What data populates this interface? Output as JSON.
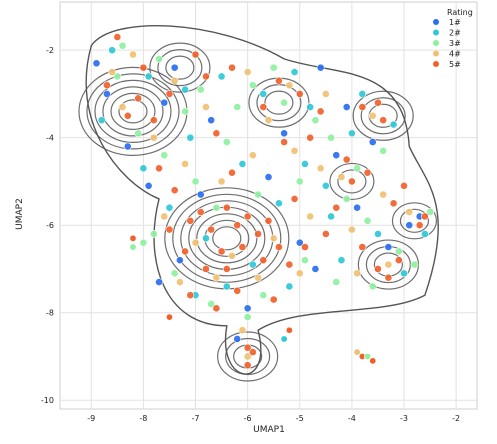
{
  "chart_data": {
    "type": "scatter",
    "xlabel": "UMAP1",
    "ylabel": "UMAP2",
    "xlim": [
      -9.6,
      -1.6
    ],
    "ylim": [
      -10.2,
      -0.9
    ],
    "xticks": [
      -9,
      -8,
      -7,
      -6,
      -5,
      -4,
      -3,
      -2
    ],
    "yticks": [
      -10,
      -8,
      -6,
      -4,
      -2
    ],
    "grid": true,
    "style": "whitegrid",
    "overlay": "kde density contours",
    "legend": {
      "title": "Rating",
      "placement": "top-right",
      "entries": [
        {
          "label": "1#",
          "color": "#2a6ef0"
        },
        {
          "label": "2#",
          "color": "#2ec8d8"
        },
        {
          "label": "3#",
          "color": "#8ef0a0"
        },
        {
          "label": "4#",
          "color": "#f0c070"
        },
        {
          "label": "5#",
          "color": "#f2602a"
        }
      ]
    },
    "series": [
      {
        "name": "1#",
        "color": "#2a6ef0",
        "points": [
          [
            -8.9,
            -2.3
          ],
          [
            -7.6,
            -3.2
          ],
          [
            -6.7,
            -3.6
          ],
          [
            -5.3,
            -3.9
          ],
          [
            -4.3,
            -4.4
          ],
          [
            -3.6,
            -4.1
          ],
          [
            -8.3,
            -4.2
          ],
          [
            -7.9,
            -5.1
          ],
          [
            -7.3,
            -6.8
          ],
          [
            -6.0,
            -7.9
          ],
          [
            -5.0,
            -6.4
          ],
          [
            -3.9,
            -5.6
          ],
          [
            -2.9,
            -6.0
          ],
          [
            -4.6,
            -2.4
          ],
          [
            -8.7,
            -3.0
          ],
          [
            -6.2,
            -8.6
          ],
          [
            -7.7,
            -7.3
          ],
          [
            -5.6,
            -4.9
          ],
          [
            -4.7,
            -7.0
          ],
          [
            -3.3,
            -6.5
          ],
          [
            -2.7,
            -5.8
          ],
          [
            -7.4,
            -2.4
          ],
          [
            -6.9,
            -5.3
          ],
          [
            -4.1,
            -3.3
          ]
        ]
      },
      {
        "name": "2#",
        "color": "#2ec8d8",
        "points": [
          [
            -8.6,
            -2.0
          ],
          [
            -7.9,
            -2.6
          ],
          [
            -7.1,
            -4.0
          ],
          [
            -6.5,
            -2.6
          ],
          [
            -5.7,
            -3.0
          ],
          [
            -4.9,
            -4.6
          ],
          [
            -4.0,
            -3.9
          ],
          [
            -3.2,
            -3.7
          ],
          [
            -8.0,
            -4.7
          ],
          [
            -7.5,
            -5.6
          ],
          [
            -6.8,
            -6.3
          ],
          [
            -5.4,
            -5.5
          ],
          [
            -4.4,
            -5.8
          ],
          [
            -3.5,
            -6.2
          ],
          [
            -3.0,
            -7.1
          ],
          [
            -6.4,
            -7.4
          ],
          [
            -5.2,
            -7.4
          ],
          [
            -7.0,
            -7.6
          ],
          [
            -4.8,
            -3.3
          ],
          [
            -3.8,
            -3.0
          ],
          [
            -8.8,
            -3.6
          ],
          [
            -6.1,
            -4.6
          ],
          [
            -5.9,
            -6.9
          ],
          [
            -4.2,
            -6.8
          ],
          [
            -2.6,
            -6.2
          ],
          [
            -7.2,
            -2.9
          ],
          [
            -5.1,
            -2.5
          ],
          [
            -4.5,
            -5.1
          ]
        ]
      },
      {
        "name": "3#",
        "color": "#8ef0a0",
        "points": [
          [
            -8.4,
            -1.9
          ],
          [
            -7.7,
            -2.2
          ],
          [
            -6.9,
            -2.9
          ],
          [
            -6.2,
            -3.3
          ],
          [
            -5.5,
            -2.4
          ],
          [
            -4.7,
            -3.6
          ],
          [
            -3.9,
            -4.7
          ],
          [
            -3.4,
            -4.3
          ],
          [
            -8.1,
            -3.9
          ],
          [
            -7.6,
            -4.4
          ],
          [
            -7.0,
            -5.0
          ],
          [
            -6.6,
            -5.6
          ],
          [
            -5.8,
            -5.3
          ],
          [
            -5.0,
            -5.0
          ],
          [
            -4.1,
            -5.4
          ],
          [
            -3.7,
            -5.9
          ],
          [
            -3.1,
            -6.6
          ],
          [
            -2.8,
            -6.9
          ],
          [
            -7.8,
            -6.2
          ],
          [
            -7.4,
            -7.1
          ],
          [
            -6.7,
            -7.8
          ],
          [
            -5.7,
            -7.6
          ],
          [
            -4.9,
            -6.8
          ],
          [
            -4.3,
            -7.3
          ],
          [
            -3.6,
            -7.4
          ],
          [
            -6.0,
            -8.1
          ],
          [
            -8.0,
            -6.4
          ],
          [
            -4.4,
            -4.0
          ],
          [
            -5.3,
            -3.2
          ],
          [
            -6.4,
            -4.1
          ],
          [
            -2.5,
            -5.7
          ],
          [
            -8.5,
            -2.6
          ],
          [
            -7.2,
            -3.4
          ],
          [
            -5.9,
            -2.8
          ]
        ]
      },
      {
        "name": "4#",
        "color": "#f0c070",
        "points": [
          [
            -8.2,
            -2.1
          ],
          [
            -7.4,
            -2.7
          ],
          [
            -6.8,
            -3.3
          ],
          [
            -6.0,
            -2.5
          ],
          [
            -5.2,
            -2.8
          ],
          [
            -4.5,
            -3.0
          ],
          [
            -3.6,
            -3.5
          ],
          [
            -8.4,
            -3.3
          ],
          [
            -7.8,
            -4.0
          ],
          [
            -7.2,
            -4.6
          ],
          [
            -6.5,
            -5.0
          ],
          [
            -5.9,
            -4.4
          ],
          [
            -5.1,
            -4.3
          ],
          [
            -4.2,
            -4.9
          ],
          [
            -3.4,
            -5.3
          ],
          [
            -2.9,
            -5.7
          ],
          [
            -7.6,
            -5.8
          ],
          [
            -7.0,
            -6.4
          ],
          [
            -6.3,
            -6.7
          ],
          [
            -5.5,
            -6.3
          ],
          [
            -4.8,
            -5.8
          ],
          [
            -4.0,
            -6.1
          ],
          [
            -3.3,
            -6.9
          ],
          [
            -7.3,
            -7.3
          ],
          [
            -6.6,
            -7.2
          ],
          [
            -5.8,
            -7.2
          ],
          [
            -5.0,
            -7.1
          ],
          [
            -6.1,
            -8.4
          ],
          [
            -6.0,
            -9.0
          ],
          [
            -3.9,
            -7.1
          ],
          [
            -4.6,
            -4.7
          ],
          [
            -8.6,
            -2.5
          ],
          [
            -5.6,
            -3.6
          ]
        ]
      },
      {
        "name": "5#",
        "color": "#f2602a",
        "points": [
          [
            -8.5,
            -1.7
          ],
          [
            -8.0,
            -2.4
          ],
          [
            -8.3,
            -3.5
          ],
          [
            -8.1,
            -3.1
          ],
          [
            -7.8,
            -3.6
          ],
          [
            -7.5,
            -3.0
          ],
          [
            -7.0,
            -2.1
          ],
          [
            -6.8,
            -2.6
          ],
          [
            -6.3,
            -2.4
          ],
          [
            -6.6,
            -3.9
          ],
          [
            -5.4,
            -2.7
          ],
          [
            -5.0,
            -3.0
          ],
          [
            -4.6,
            -3.4
          ],
          [
            -5.7,
            -3.3
          ],
          [
            -4.8,
            -4.0
          ],
          [
            -5.3,
            -4.1
          ],
          [
            -3.8,
            -3.3
          ],
          [
            -3.5,
            -3.2
          ],
          [
            -3.4,
            -3.6
          ],
          [
            -4.1,
            -4.5
          ],
          [
            -4.0,
            -5.0
          ],
          [
            -3.7,
            -4.8
          ],
          [
            -3.2,
            -5.5
          ],
          [
            -3.0,
            -5.1
          ],
          [
            -7.4,
            -5.2
          ],
          [
            -7.1,
            -5.9
          ],
          [
            -6.9,
            -5.7
          ],
          [
            -6.7,
            -6.1
          ],
          [
            -6.4,
            -5.6
          ],
          [
            -6.2,
            -6.0
          ],
          [
            -6.0,
            -5.8
          ],
          [
            -5.8,
            -6.2
          ],
          [
            -5.6,
            -5.9
          ],
          [
            -5.4,
            -6.5
          ],
          [
            -6.5,
            -6.6
          ],
          [
            -7.2,
            -6.6
          ],
          [
            -7.5,
            -6.1
          ],
          [
            -6.8,
            -7.0
          ],
          [
            -6.4,
            -7.0
          ],
          [
            -6.1,
            -6.5
          ],
          [
            -5.7,
            -6.8
          ],
          [
            -5.2,
            -6.9
          ],
          [
            -4.9,
            -6.5
          ],
          [
            -6.2,
            -7.5
          ],
          [
            -5.5,
            -7.7
          ],
          [
            -7.1,
            -7.6
          ],
          [
            -6.6,
            -7.9
          ],
          [
            -4.5,
            -6.2
          ],
          [
            -3.8,
            -6.5
          ],
          [
            -3.5,
            -7.0
          ],
          [
            -3.3,
            -7.2
          ],
          [
            -3.1,
            -6.8
          ],
          [
            -2.7,
            -6.0
          ],
          [
            -2.6,
            -5.8
          ],
          [
            -6.0,
            -8.8
          ],
          [
            -6.0,
            -9.2
          ],
          [
            -5.9,
            -8.9
          ],
          [
            -8.7,
            -2.8
          ],
          [
            -5.1,
            -5.4
          ],
          [
            -4.3,
            -5.6
          ],
          [
            -6.3,
            -4.8
          ],
          [
            -7.7,
            -4.7
          ]
        ]
      }
    ],
    "outliers": [
      {
        "series": "4#",
        "x": -3.9,
        "y": -8.9
      },
      {
        "series": "5#",
        "x": -3.8,
        "y": -9.0
      },
      {
        "series": "5#",
        "x": -3.6,
        "y": -9.1
      },
      {
        "series": "3#",
        "x": -3.7,
        "y": -9.0
      },
      {
        "series": "5#",
        "x": -8.2,
        "y": -6.3
      },
      {
        "series": "3#",
        "x": -8.2,
        "y": -6.5
      },
      {
        "series": "5#",
        "x": -7.5,
        "y": -8.1
      },
      {
        "series": "5#",
        "x": -5.2,
        "y": -8.4
      },
      {
        "series": "2#",
        "x": -5.3,
        "y": -8.6
      }
    ],
    "density_peaks": [
      {
        "x": -8.2,
        "y": -3.4,
        "level": 6
      },
      {
        "x": -7.3,
        "y": -2.4,
        "level": 3
      },
      {
        "x": -6.4,
        "y": -6.3,
        "level": 7
      },
      {
        "x": -5.4,
        "y": -3.2,
        "level": 3
      },
      {
        "x": -3.4,
        "y": -3.5,
        "level": 3
      },
      {
        "x": -4.0,
        "y": -5.0,
        "level": 2
      },
      {
        "x": -3.3,
        "y": -6.9,
        "level": 3
      },
      {
        "x": -2.8,
        "y": -5.9,
        "level": 2
      },
      {
        "x": -6.0,
        "y": -9.0,
        "level": 3
      }
    ]
  }
}
